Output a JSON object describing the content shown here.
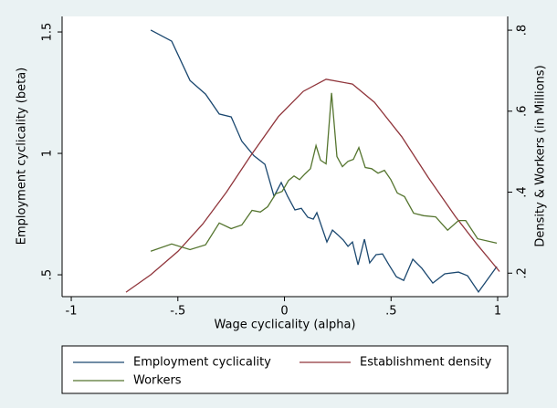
{
  "chart_data": {
    "type": "line",
    "xlabel": "Wage cyclicality (alpha)",
    "ylabel": "Employment cyclicality (beta)",
    "y2label": "Density & Workers (in Millions)",
    "xlim": [
      -1.043,
      1.047
    ],
    "xticks": [
      -1,
      {
        "value": -0.5,
        "label": "-.5"
      },
      0,
      {
        "value": 0.5,
        "label": ".5"
      },
      1
    ],
    "ylim": [
      0.41,
      1.564
    ],
    "yticks": [
      {
        "value": 0.5,
        "label": ".5"
      },
      1,
      1.5
    ],
    "y2lim": [
      0.142,
      0.834
    ],
    "y2ticks": [
      {
        "value": 0.2,
        "label": ".2"
      },
      {
        "value": 0.4,
        "label": ".4"
      },
      {
        "value": 0.6,
        "label": ".6"
      },
      {
        "value": 0.8,
        "label": ".8"
      }
    ],
    "grid": false,
    "legend": "bottom",
    "series": [
      {
        "name": "Employment cyclicality",
        "color": "#1a476f",
        "axis": "y",
        "x": [
          -0.627,
          -0.529,
          -0.443,
          -0.37,
          -0.306,
          -0.25,
          -0.2,
          -0.143,
          -0.092,
          -0.049,
          -0.015,
          0.015,
          0.049,
          0.079,
          0.109,
          0.135,
          0.152,
          0.199,
          0.225,
          0.25,
          0.276,
          0.298,
          0.319,
          0.345,
          0.375,
          0.4,
          0.43,
          0.46,
          0.49,
          0.525,
          0.559,
          0.602,
          0.645,
          0.696,
          0.752,
          0.816,
          0.859,
          0.91,
          0.996
        ],
        "values": [
          1.508,
          1.462,
          1.3,
          1.244,
          1.162,
          1.15,
          1.05,
          0.99,
          0.955,
          0.823,
          0.88,
          0.823,
          0.767,
          0.774,
          0.737,
          0.729,
          0.756,
          0.635,
          0.684,
          0.665,
          0.643,
          0.617,
          0.635,
          0.541,
          0.647,
          0.549,
          0.583,
          0.586,
          0.541,
          0.492,
          0.477,
          0.564,
          0.526,
          0.466,
          0.504,
          0.511,
          0.496,
          0.429,
          0.534
        ]
      },
      {
        "name": "Establishment density",
        "color": "#90353b",
        "axis": "y2",
        "x": [
          -0.743,
          -0.627,
          -0.499,
          -0.384,
          -0.272,
          -0.161,
          -0.028,
          0.088,
          0.195,
          0.319,
          0.422,
          0.55,
          0.675,
          0.803,
          0.902,
          1.009
        ],
        "values": [
          0.153,
          0.196,
          0.254,
          0.321,
          0.4,
          0.488,
          0.587,
          0.649,
          0.679,
          0.667,
          0.622,
          0.537,
          0.436,
          0.339,
          0.272,
          0.204
        ]
      },
      {
        "name": "Workers",
        "color": "#55752f",
        "axis": "y2",
        "x": [
          -0.627,
          -0.529,
          -0.443,
          -0.37,
          -0.306,
          -0.25,
          -0.2,
          -0.152,
          -0.113,
          -0.079,
          -0.041,
          -0.011,
          0.019,
          0.045,
          0.071,
          0.096,
          0.122,
          0.148,
          0.169,
          0.195,
          0.221,
          0.246,
          0.272,
          0.298,
          0.323,
          0.349,
          0.379,
          0.409,
          0.439,
          0.469,
          0.499,
          0.529,
          0.563,
          0.606,
          0.653,
          0.709,
          0.765,
          0.816,
          0.85,
          0.906,
          0.996
        ],
        "values": [
          0.254,
          0.272,
          0.258,
          0.27,
          0.324,
          0.31,
          0.319,
          0.355,
          0.351,
          0.364,
          0.396,
          0.402,
          0.429,
          0.44,
          0.431,
          0.445,
          0.458,
          0.515,
          0.479,
          0.47,
          0.645,
          0.488,
          0.463,
          0.476,
          0.481,
          0.51,
          0.461,
          0.458,
          0.447,
          0.454,
          0.431,
          0.398,
          0.389,
          0.348,
          0.342,
          0.339,
          0.306,
          0.33,
          0.33,
          0.285,
          0.274
        ]
      }
    ]
  }
}
